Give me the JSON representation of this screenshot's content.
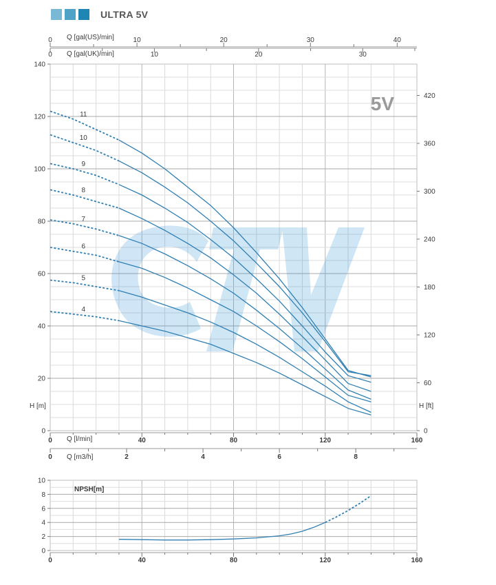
{
  "header": {
    "title": "ULTRA 5V",
    "swatches": [
      "#7ab9d6",
      "#4ea3c6",
      "#1f86b3"
    ]
  },
  "chart_data": [
    {
      "type": "line",
      "title": "5V",
      "xlabel": "Q [l/min]",
      "ylabel": "H [m]",
      "ylabel_right": "H [ft]",
      "xlim": [
        0,
        160
      ],
      "ylim": [
        0,
        140
      ],
      "x_ticks": [
        "0",
        "40",
        "80",
        "120",
        "160"
      ],
      "y_ticks": [
        "0",
        "20",
        "40",
        "60",
        "80",
        "100",
        "120",
        "140"
      ],
      "y_right_ticks": [
        "0",
        "60",
        "120",
        "180",
        "240",
        "300",
        "360",
        "420"
      ],
      "secondary_x_axes": [
        {
          "label": "Q [gal(US)/min]",
          "ticks": [
            "0",
            "10",
            "20",
            "30",
            "40"
          ],
          "per_lmin": 0.2642
        },
        {
          "label": "Q [gal(UK)/min]",
          "ticks": [
            "0",
            "10",
            "20",
            "30"
          ],
          "per_lmin": 0.22
        },
        {
          "label": "Q [m3/h]",
          "ticks": [
            "0",
            "2",
            "4",
            "6",
            "8"
          ],
          "per_lmin": 0.06
        }
      ],
      "series_color": "#2f7fb3",
      "dashed_until_x": 30,
      "series": [
        {
          "name": "11",
          "points": [
            [
              0,
              122
            ],
            [
              10,
              119
            ],
            [
              20,
              115
            ],
            [
              30,
              111
            ],
            [
              40,
              106
            ],
            [
              50,
              100
            ],
            [
              60,
              93
            ],
            [
              70,
              86
            ],
            [
              80,
              77.5
            ],
            [
              90,
              68
            ],
            [
              100,
              58
            ],
            [
              110,
              47
            ],
            [
              120,
              35
            ],
            [
              130,
              23
            ],
            [
              140,
              20.5
            ]
          ]
        },
        {
          "name": "10",
          "points": [
            [
              0,
              113
            ],
            [
              10,
              110
            ],
            [
              20,
              107
            ],
            [
              30,
              103
            ],
            [
              40,
              98.5
            ],
            [
              50,
              93
            ],
            [
              60,
              87
            ],
            [
              70,
              80
            ],
            [
              80,
              72.5
            ],
            [
              90,
              64
            ],
            [
              100,
              55
            ],
            [
              110,
              45
            ],
            [
              120,
              34
            ],
            [
              130,
              22.5
            ],
            [
              140,
              21
            ]
          ]
        },
        {
          "name": "9",
          "points": [
            [
              0,
              102
            ],
            [
              10,
              100
            ],
            [
              20,
              97.5
            ],
            [
              30,
              94
            ],
            [
              40,
              90
            ],
            [
              50,
              85
            ],
            [
              60,
              79.5
            ],
            [
              70,
              73
            ],
            [
              80,
              66
            ],
            [
              90,
              58
            ],
            [
              100,
              49.5
            ],
            [
              110,
              40
            ],
            [
              120,
              30
            ],
            [
              130,
              21
            ],
            [
              140,
              18.5
            ]
          ]
        },
        {
          "name": "8",
          "points": [
            [
              0,
              92
            ],
            [
              10,
              90
            ],
            [
              20,
              87.5
            ],
            [
              30,
              85
            ],
            [
              40,
              81
            ],
            [
              50,
              76.5
            ],
            [
              60,
              71.5
            ],
            [
              70,
              66
            ],
            [
              80,
              59.5
            ],
            [
              90,
              52.5
            ],
            [
              100,
              44.5
            ],
            [
              110,
              36
            ],
            [
              120,
              27
            ],
            [
              130,
              18
            ],
            [
              140,
              15
            ]
          ]
        },
        {
          "name": "7",
          "points": [
            [
              0,
              80.5
            ],
            [
              10,
              79
            ],
            [
              20,
              77
            ],
            [
              30,
              74.5
            ],
            [
              40,
              71.5
            ],
            [
              50,
              67.5
            ],
            [
              60,
              63
            ],
            [
              70,
              58
            ],
            [
              80,
              52.5
            ],
            [
              90,
              46
            ],
            [
              100,
              39
            ],
            [
              110,
              31.5
            ],
            [
              120,
              23.5
            ],
            [
              130,
              15.5
            ],
            [
              140,
              12
            ]
          ]
        },
        {
          "name": "6",
          "points": [
            [
              0,
              70
            ],
            [
              10,
              68.5
            ],
            [
              20,
              67
            ],
            [
              30,
              64.5
            ],
            [
              40,
              62
            ],
            [
              50,
              58.5
            ],
            [
              60,
              54.5
            ],
            [
              70,
              50
            ],
            [
              80,
              45.5
            ],
            [
              90,
              40
            ],
            [
              100,
              34
            ],
            [
              110,
              27.5
            ],
            [
              120,
              20.5
            ],
            [
              130,
              13.5
            ],
            [
              140,
              11
            ]
          ]
        },
        {
          "name": "5",
          "points": [
            [
              0,
              57.5
            ],
            [
              10,
              56.5
            ],
            [
              20,
              55
            ],
            [
              30,
              53.5
            ],
            [
              40,
              51
            ],
            [
              50,
              48
            ],
            [
              60,
              45
            ],
            [
              70,
              41.5
            ],
            [
              80,
              37.5
            ],
            [
              90,
              33
            ],
            [
              100,
              28
            ],
            [
              110,
              22.5
            ],
            [
              120,
              17
            ],
            [
              130,
              11
            ],
            [
              140,
              7
            ]
          ]
        },
        {
          "name": "4",
          "points": [
            [
              0,
              45.5
            ],
            [
              10,
              44.5
            ],
            [
              20,
              43.5
            ],
            [
              30,
              42
            ],
            [
              40,
              40
            ],
            [
              50,
              38
            ],
            [
              60,
              35.5
            ],
            [
              70,
              33
            ],
            [
              80,
              29.5
            ],
            [
              90,
              26
            ],
            [
              100,
              22
            ],
            [
              110,
              17.5
            ],
            [
              120,
              13
            ],
            [
              130,
              8.5
            ],
            [
              140,
              6
            ]
          ]
        }
      ]
    },
    {
      "type": "line",
      "title": "",
      "ylabel": "NPSH[m]",
      "xlim": [
        0,
        160
      ],
      "ylim": [
        0,
        10
      ],
      "x_ticks": [
        "0",
        "40",
        "80",
        "120",
        "160"
      ],
      "y_ticks": [
        "0",
        "2",
        "4",
        "6",
        "8",
        "10"
      ],
      "series_color": "#2f7fb3",
      "dashed_from_x": 120,
      "series": [
        {
          "name": "",
          "points": [
            [
              30,
              1.6
            ],
            [
              40,
              1.55
            ],
            [
              50,
              1.5
            ],
            [
              60,
              1.5
            ],
            [
              70,
              1.55
            ],
            [
              80,
              1.65
            ],
            [
              90,
              1.8
            ],
            [
              100,
              2.1
            ],
            [
              105,
              2.35
            ],
            [
              110,
              2.75
            ],
            [
              115,
              3.3
            ],
            [
              120,
              4.0
            ],
            [
              125,
              4.8
            ],
            [
              130,
              5.7
            ],
            [
              135,
              6.7
            ],
            [
              140,
              7.8
            ]
          ]
        }
      ]
    }
  ]
}
